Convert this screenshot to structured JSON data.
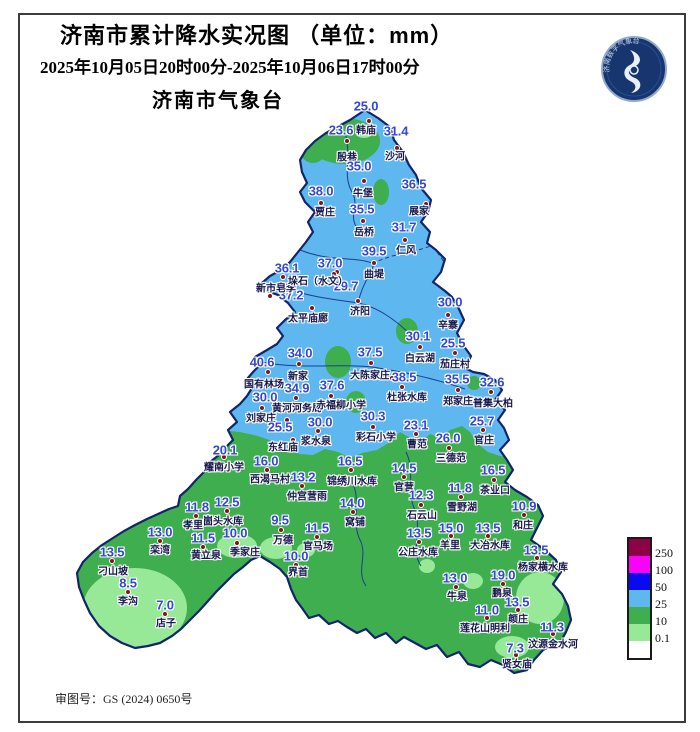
{
  "header": {
    "title": "济南市累计降水实况图 （单位：mm）",
    "date_range": "2025年10月05日20时00分-2025年10月06日17时00分",
    "agency": "济南市气象台",
    "logo_text": "济南数字气象台",
    "review_number": "审图号：GS (2024) 0650号"
  },
  "colors": {
    "rain_25_50": "#5fb7ef",
    "rain_10_25": "#3fae4e",
    "rain_01_10": "#97e897",
    "rain_50_100": "#0a0af0",
    "rain_100_250": "#f803f8",
    "rain_over_250": "#8d0246",
    "value_text": "#3347d1",
    "name_text": "#16164e",
    "station_dot": "#7c1818"
  },
  "legend": {
    "entries": [
      {
        "label": "250",
        "color": "#8d0246"
      },
      {
        "label": "100",
        "color": "#f803f8"
      },
      {
        "label": "50",
        "color": "#0a0af0"
      },
      {
        "label": "25",
        "color": "#5fb7ef"
      },
      {
        "label": "10",
        "color": "#3fae4e"
      },
      {
        "label": "0.1",
        "color": "#97e897"
      }
    ],
    "bottom_cell_color": "#ffffff"
  },
  "stations": [
    {
      "name": "韩庙",
      "value": "25.0",
      "dot": [
        369,
        121
      ],
      "v": [
        366,
        106
      ],
      "n": [
        366,
        129
      ]
    },
    {
      "name": "殷巷",
      "value": "23.6",
      "dot": [
        347,
        141
      ],
      "v": [
        341,
        130
      ],
      "n": [
        347,
        156
      ]
    },
    {
      "name": "沙河",
      "value": "31.4",
      "dot": [
        397,
        148
      ],
      "v": [
        396,
        131
      ],
      "n": [
        395,
        155
      ]
    },
    {
      "name": "牛堡",
      "value": "35.0",
      "dot": [
        364,
        181
      ],
      "v": [
        359,
        166
      ],
      "n": [
        363,
        192
      ]
    },
    {
      "name": "贾庄",
      "value": "38.0",
      "dot": [
        321,
        203
      ],
      "v": [
        321,
        191
      ],
      "n": [
        325,
        211
      ]
    },
    {
      "name": "展家",
      "value": "36.5",
      "dot": [
        426,
        204
      ],
      "v": [
        414,
        184
      ],
      "n": [
        419,
        210
      ]
    },
    {
      "name": "岳桥",
      "value": "35.5",
      "dot": [
        363,
        221
      ],
      "v": [
        362,
        209
      ],
      "n": [
        364,
        231
      ]
    },
    {
      "name": "仁风",
      "value": "31.7",
      "dot": [
        405,
        240
      ],
      "v": [
        404,
        227
      ],
      "n": [
        406,
        249
      ]
    },
    {
      "name": "曲堤",
      "value": "39.5",
      "dot": [
        374,
        263
      ],
      "v": [
        374,
        251
      ],
      "n": [
        374,
        273
      ]
    },
    {
      "name": "",
      "value": "37.0",
      "dot": [
        337,
        272
      ],
      "v": [
        330,
        263
      ],
      "n": null
    },
    {
      "name": "",
      "value": "36.1",
      "dot": [
        283,
        277
      ],
      "v": [
        287,
        268
      ],
      "n": null
    },
    {
      "name": "新市皂李",
      "value": "37.2",
      "dot": [
        270,
        296
      ],
      "v": [
        291,
        295
      ],
      "n": [
        276,
        287
      ]
    },
    {
      "name": "垛石（水文）",
      "value": "29.7",
      "dot": [
        334,
        274
      ],
      "v": [
        346,
        286
      ],
      "n": [
        318,
        280
      ]
    },
    {
      "name": "太平庙廊",
      "value": null,
      "dot": [
        312,
        308
      ],
      "n": [
        308,
        317
      ]
    },
    {
      "name": "济阳",
      "value": null,
      "dot": [
        358,
        301
      ],
      "n": [
        360,
        310
      ]
    },
    {
      "name": "辛寨",
      "value": "30.0",
      "dot": [
        448,
        315
      ],
      "v": [
        450,
        302
      ],
      "n": [
        448,
        324
      ]
    },
    {
      "name": "白云湖",
      "value": "30.1",
      "dot": [
        420,
        347
      ],
      "v": [
        418,
        336
      ],
      "n": [
        420,
        357
      ]
    },
    {
      "name": "茄庄村",
      "value": "25.5",
      "dot": [
        455,
        353
      ],
      "v": [
        453,
        343
      ],
      "n": [
        455,
        363
      ]
    },
    {
      "name": "新家",
      "value": "34.0",
      "dot": [
        299,
        364
      ],
      "v": [
        300,
        353
      ],
      "n": [
        298,
        375
      ]
    },
    {
      "name": "大陈家庄",
      "value": "37.5",
      "dot": [
        371,
        363
      ],
      "v": [
        370,
        352
      ],
      "n": [
        370,
        374
      ]
    },
    {
      "name": "",
      "value": "38.5",
      "dot": [
        392,
        378
      ],
      "v": [
        404,
        377
      ],
      "n": null
    },
    {
      "name": "郑家庄",
      "value": "35.5",
      "dot": [
        458,
        390
      ],
      "v": [
        457,
        379
      ],
      "n": [
        458,
        400
      ]
    },
    {
      "name": "普集大柏",
      "value": "32.6",
      "dot": [
        491,
        392
      ],
      "v": [
        492,
        382
      ],
      "n": [
        493,
        402
      ]
    },
    {
      "name": "国有林场",
      "value": "40.6",
      "dot": [
        268,
        372
      ],
      "v": [
        262,
        362
      ],
      "n": [
        264,
        383
      ]
    },
    {
      "name": "黄河河务局",
      "value": "34.9",
      "dot": [
        296,
        398
      ],
      "v": [
        297,
        388
      ],
      "n": [
        297,
        407
      ]
    },
    {
      "name": "赤福柳小学",
      "value": "37.6",
      "dot": [
        331,
        396
      ],
      "v": [
        332,
        385
      ],
      "n": [
        341,
        404
      ]
    },
    {
      "name": "刘家庄",
      "value": "30.0",
      "dot": [
        262,
        408
      ],
      "v": [
        265,
        397
      ],
      "n": [
        261,
        417
      ]
    },
    {
      "name": "",
      "value": "25.5",
      "dot": [
        287,
        420
      ],
      "v": [
        280,
        427
      ],
      "n": null
    },
    {
      "name": "杜张水库",
      "value": null,
      "dot": [
        402,
        387
      ],
      "n": [
        407,
        396
      ]
    },
    {
      "name": "彩石小学",
      "value": "30.3",
      "dot": [
        373,
        427
      ],
      "v": [
        373,
        416
      ],
      "n": [
        376,
        436
      ]
    },
    {
      "name": "浆水泉",
      "value": "30.0",
      "dot": [
        318,
        431
      ],
      "v": [
        320,
        422
      ],
      "n": [
        316,
        440
      ]
    },
    {
      "name": "曹范",
      "value": "23.1",
      "dot": [
        416,
        434
      ],
      "v": [
        416,
        425
      ],
      "n": [
        417,
        443
      ]
    },
    {
      "name": "三德范",
      "value": "26.0",
      "dot": [
        449,
        448
      ],
      "v": [
        448,
        438
      ],
      "n": [
        451,
        457
      ]
    },
    {
      "name": "官庄",
      "value": "25.7",
      "dot": [
        483,
        430
      ],
      "v": [
        482,
        421
      ],
      "n": [
        484,
        439
      ]
    },
    {
      "name": "东红庙",
      "value": null,
      "dot": [
        293,
        440
      ],
      "n": [
        283,
        446
      ]
    },
    {
      "name": "耀南小学",
      "value": "20.1",
      "dot": [
        224,
        457
      ],
      "v": [
        225,
        450
      ],
      "n": [
        224,
        466
      ]
    },
    {
      "name": "西渴马村",
      "value": "16.0",
      "dot": [
        267,
        470
      ],
      "v": [
        266,
        461
      ],
      "n": [
        270,
        478
      ]
    },
    {
      "name": "仲宫营雨",
      "value": "13.2",
      "dot": [
        302,
        486
      ],
      "v": [
        303,
        477
      ],
      "n": [
        307,
        495
      ]
    },
    {
      "name": "锦绣川水库",
      "value": "16.5",
      "dot": [
        351,
        470
      ],
      "v": [
        350,
        461
      ],
      "n": [
        352,
        480
      ]
    },
    {
      "name": "官营",
      "value": "14.5",
      "dot": [
        404,
        477
      ],
      "v": [
        404,
        468
      ],
      "n": [
        404,
        486
      ]
    },
    {
      "name": "石云山",
      "value": "12.3",
      "dot": [
        421,
        505
      ],
      "v": [
        421,
        495
      ],
      "n": [
        422,
        514
      ]
    },
    {
      "name": "雪野湖",
      "value": "11.8",
      "dot": [
        461,
        497
      ],
      "v": [
        460,
        488
      ],
      "n": [
        462,
        506
      ]
    },
    {
      "name": "茶业口",
      "value": "16.5",
      "dot": [
        494,
        480
      ],
      "v": [
        493,
        470
      ],
      "n": [
        495,
        489
      ]
    },
    {
      "name": "和庄",
      "value": "10.9",
      "dot": [
        524,
        515
      ],
      "v": [
        524,
        506
      ],
      "n": [
        523,
        524
      ]
    },
    {
      "name": "窝铺",
      "value": "14.0",
      "dot": [
        353,
        512
      ],
      "v": [
        352,
        503
      ],
      "n": [
        355,
        521
      ]
    },
    {
      "name": "孝里",
      "value": "11.8",
      "dot": [
        196,
        516
      ],
      "v": [
        197,
        507
      ],
      "n": [
        193,
        524
      ]
    },
    {
      "name": "崮头水库",
      "value": "12.5",
      "dot": [
        227,
        511
      ],
      "v": [
        227,
        502
      ],
      "n": [
        223,
        520
      ]
    },
    {
      "name": "季家庄",
      "value": "10.0",
      "dot": [
        237,
        543
      ],
      "v": [
        235,
        533
      ],
      "n": [
        245,
        551
      ]
    },
    {
      "name": "黄立泉",
      "value": "11.5",
      "dot": [
        203,
        547
      ],
      "v": [
        203,
        538
      ],
      "n": [
        206,
        554
      ]
    },
    {
      "name": "万德",
      "value": "9.5",
      "dot": [
        281,
        530
      ],
      "v": [
        280,
        520
      ],
      "n": [
        283,
        539
      ]
    },
    {
      "name": "官马场",
      "value": "11.5",
      "dot": [
        317,
        537
      ],
      "v": [
        317,
        528
      ],
      "n": [
        318,
        545
      ]
    },
    {
      "name": "界首",
      "value": "10.0",
      "dot": [
        296,
        565
      ],
      "v": [
        296,
        556
      ],
      "n": [
        298,
        571
      ]
    },
    {
      "name": "栾湾",
      "value": "13.0",
      "dot": [
        160,
        541
      ],
      "v": [
        160,
        532
      ],
      "n": [
        160,
        549
      ]
    },
    {
      "name": "刁山坡",
      "value": "13.5",
      "dot": [
        112,
        561
      ],
      "v": [
        112,
        552
      ],
      "n": [
        113,
        570
      ]
    },
    {
      "name": "李沟",
      "value": "8.5",
      "dot": [
        128,
        592
      ],
      "v": [
        128,
        583
      ],
      "n": [
        128,
        600
      ]
    },
    {
      "name": "店子",
      "value": "7.0",
      "dot": [
        165,
        614
      ],
      "v": [
        165,
        605
      ],
      "n": [
        166,
        622
      ]
    },
    {
      "name": "公庄水库",
      "value": "13.5",
      "dot": [
        419,
        542
      ],
      "v": [
        419,
        533
      ],
      "n": [
        418,
        551
      ]
    },
    {
      "name": "羊里",
      "value": "15.0",
      "dot": [
        451,
        536
      ],
      "v": [
        451,
        528
      ],
      "n": [
        450,
        544
      ]
    },
    {
      "name": "大冶水库",
      "value": "13.5",
      "dot": [
        488,
        536
      ],
      "v": [
        488,
        528
      ],
      "n": [
        490,
        544
      ]
    },
    {
      "name": "杨家横水库",
      "value": "13.5",
      "dot": [
        537,
        558
      ],
      "v": [
        536,
        550
      ],
      "n": [
        543,
        566
      ]
    },
    {
      "name": "牛泉",
      "value": "13.0",
      "dot": [
        456,
        587
      ],
      "v": [
        455,
        578
      ],
      "n": [
        457,
        595
      ]
    },
    {
      "name": "鹏泉",
      "value": "19.0",
      "dot": [
        503,
        584
      ],
      "v": [
        503,
        575
      ],
      "n": [
        502,
        592
      ]
    },
    {
      "name": "颜庄",
      "value": "13.5",
      "dot": [
        518,
        610
      ],
      "v": [
        517,
        602
      ],
      "n": [
        518,
        618
      ]
    },
    {
      "name": "莲花山明利",
      "value": "11.0",
      "dot": [
        487,
        618
      ],
      "v": [
        487,
        610
      ],
      "n": [
        485,
        627
      ]
    },
    {
      "name": "汶源金水河",
      "value": "11.3",
      "dot": [
        553,
        634
      ],
      "v": [
        552,
        627
      ],
      "n": [
        553,
        643
      ]
    },
    {
      "name": "贤女庙",
      "value": "7.3",
      "dot": [
        516,
        655
      ],
      "v": [
        515,
        648
      ],
      "n": [
        517,
        663
      ]
    }
  ]
}
